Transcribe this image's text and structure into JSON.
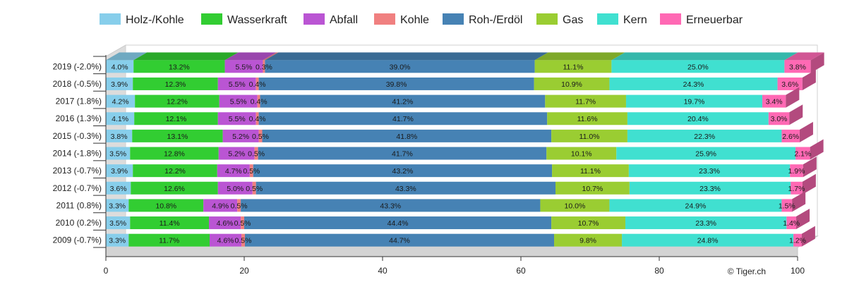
{
  "credit": "© Tiger.ch",
  "chart_data": {
    "type": "bar",
    "orientation": "horizontal",
    "stacked": "percent",
    "categories": [
      "2019 (-2.0%)",
      "2018 (-0.5%)",
      "2017 (1.8%)",
      "2016 (1.3%)",
      "2015 (-0.3%)",
      "2014 (-1.8%)",
      "2013 (-0.7%)",
      "2012 (-0.7%)",
      "2011 (0.8%)",
      "2010 (0.2%)",
      "2009 (-0.7%)"
    ],
    "xlim": [
      0,
      100
    ],
    "xticks": [
      "0",
      "20",
      "40",
      "60",
      "80",
      "100"
    ],
    "legend_position": "top",
    "grid": false,
    "series": [
      {
        "name": "Holz-/Kohle",
        "color": "#87ceeb",
        "values": [
          4.0,
          3.9,
          4.2,
          4.1,
          3.8,
          3.5,
          3.9,
          3.6,
          3.3,
          3.5,
          3.3
        ],
        "labels": [
          "4.0%",
          "3.9%",
          "4.2%",
          "4.1%",
          "3.8%",
          "3.5%",
          "3.9%",
          "3.6%",
          "3.3%",
          "3.5%",
          "3.3%"
        ]
      },
      {
        "name": "Wasserkraft",
        "color": "#32cd32",
        "values": [
          13.2,
          12.3,
          12.2,
          12.1,
          13.1,
          12.8,
          12.2,
          12.6,
          10.8,
          11.4,
          11.7
        ],
        "labels": [
          "13.2%",
          "12.3%",
          "12.2%",
          "12.1%",
          "13.1%",
          "12.8%",
          "12.2%",
          "12.6%",
          "10.8%",
          "11.4%",
          "11.7%"
        ]
      },
      {
        "name": "Abfall",
        "color": "#ba55d3",
        "values": [
          5.5,
          5.5,
          5.5,
          5.5,
          5.2,
          5.2,
          4.7,
          5.0,
          4.9,
          4.6,
          4.6
        ],
        "labels": [
          "5.5%",
          "5.5%",
          "5.5%",
          "5.5%",
          "5.2%",
          "5.2%",
          "4.7%",
          "5.0%",
          "4.9%",
          "4.6%",
          "4.6%"
        ]
      },
      {
        "name": "Kohle",
        "color": "#f08080",
        "values": [
          0.3,
          0.4,
          0.4,
          0.4,
          0.5,
          0.5,
          0.5,
          0.5,
          0.5,
          0.5,
          0.5
        ],
        "labels": [
          "0.3%",
          "0.4%",
          "0.4%",
          "0.4%",
          "0.5%",
          "0.5%",
          "0.5%",
          "0.5%",
          "0.5%",
          "0.5%",
          "0.5%"
        ]
      },
      {
        "name": "Roh-/Erdöl",
        "color": "#4682b4",
        "values": [
          39.0,
          39.8,
          41.2,
          41.7,
          41.8,
          41.7,
          43.2,
          43.3,
          43.3,
          44.4,
          44.7
        ],
        "labels": [
          "39.0%",
          "39.8%",
          "41.2%",
          "41.7%",
          "41.8%",
          "41.7%",
          "43.2%",
          "43.3%",
          "43.3%",
          "44.4%",
          "44.7%"
        ]
      },
      {
        "name": "Gas",
        "color": "#9acd32",
        "values": [
          11.1,
          10.9,
          11.7,
          11.6,
          11.0,
          10.1,
          11.1,
          10.7,
          10.0,
          10.7,
          9.8
        ],
        "labels": [
          "11.1%",
          "10.9%",
          "11.7%",
          "11.6%",
          "11.0%",
          "10.1%",
          "11.1%",
          "10.7%",
          "10.0%",
          "10.7%",
          "9.8%"
        ]
      },
      {
        "name": "Kern",
        "color": "#40e0d0",
        "values": [
          25.0,
          24.3,
          19.7,
          20.4,
          22.3,
          25.9,
          23.3,
          23.3,
          24.9,
          23.3,
          24.8
        ],
        "labels": [
          "25.0%",
          "24.3%",
          "19.7%",
          "20.4%",
          "22.3%",
          "25.9%",
          "23.3%",
          "23.3%",
          "24.9%",
          "23.3%",
          "24.8%"
        ]
      },
      {
        "name": "Erneuerbar",
        "color": "#ff69b4",
        "values": [
          3.8,
          3.6,
          3.4,
          3.0,
          2.6,
          2.1,
          1.9,
          1.7,
          1.5,
          1.4,
          1.2
        ],
        "labels": [
          "3.8%",
          "3.6%",
          "3.4%",
          "3.0%",
          "2.6%",
          "2.1%",
          "1.9%",
          "1.7%",
          "1.5%",
          "1.4%",
          "1.2%"
        ]
      }
    ]
  }
}
